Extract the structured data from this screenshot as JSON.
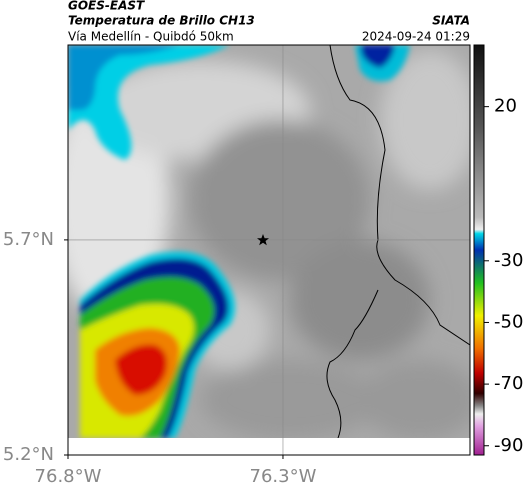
{
  "header": {
    "title": "GOES-EAST",
    "subtitle": "Temperatura de Brillo CH13",
    "source": "SIATA",
    "route": "Vía Medellín - Quibdó 50km",
    "timestamp": "2024-09-24 01:29"
  },
  "map": {
    "xlim": [
      -76.8,
      -75.865
    ],
    "ylim": [
      5.2,
      6.153
    ],
    "xticks": [
      {
        "value": -76.8,
        "label": "76.8°W"
      },
      {
        "value": -76.3,
        "label": "76.3°W"
      }
    ],
    "yticks": [
      {
        "value": 5.2,
        "label": "5.2°N"
      },
      {
        "value": 5.7,
        "label": "5.7°N"
      }
    ],
    "grid": true
  },
  "colorbar": {
    "lim": [
      40,
      -93
    ],
    "ticks": [
      20,
      -30,
      -50,
      -70,
      -90
    ]
  }
}
